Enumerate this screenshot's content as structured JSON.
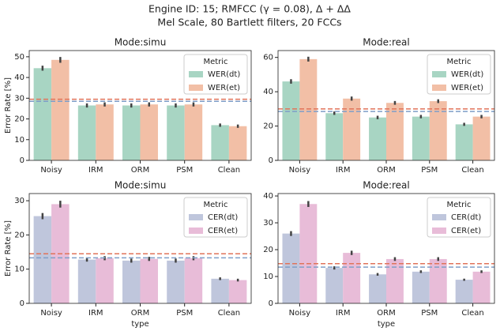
{
  "suptitle": [
    "Engine ID: 15; RMFCC (γ = 0.08), Δ + ΔΔ",
    "Mel Scale, 80 Bartlett filters, 20 FCCs"
  ],
  "chart_data": [
    {
      "type": "bar",
      "title": "Mode:simu",
      "ylabel": "Error Rate [%]",
      "legend_title": "Metric",
      "legend": "upper right",
      "categories": [
        "Noisy",
        "IRM",
        "ORM",
        "PSM",
        "Clean"
      ],
      "series": [
        {
          "name": "WER(dt)",
          "color": "#a8d5c3",
          "values": [
            44.5,
            26.5,
            26.5,
            26.5,
            17
          ],
          "errors": [
            1.2,
            1,
            1,
            1,
            0.8
          ]
        },
        {
          "name": "WER(et)",
          "color": "#f2bfa6",
          "values": [
            48.5,
            27,
            27,
            27,
            16.5
          ],
          "errors": [
            1.4,
            1,
            1,
            1,
            0.8
          ]
        }
      ],
      "reference_lines": [
        {
          "value": 29.5,
          "color": "#e0735a"
        },
        {
          "value": 28.5,
          "color": "#7f9fc8"
        }
      ],
      "ylim": [
        0,
        53
      ],
      "yticks": [
        0,
        10,
        20,
        30,
        40,
        50
      ]
    },
    {
      "type": "bar",
      "title": "Mode:real",
      "legend_title": "Metric",
      "legend": "upper right",
      "categories": [
        "Noisy",
        "IRM",
        "ORM",
        "PSM",
        "Clean"
      ],
      "series": [
        {
          "name": "WER(dt)",
          "color": "#a8d5c3",
          "values": [
            46,
            27.5,
            25,
            25.5,
            21
          ],
          "errors": [
            1.3,
            1,
            1,
            1,
            0.9
          ]
        },
        {
          "name": "WER(et)",
          "color": "#f2bfa6",
          "values": [
            59,
            36,
            33.5,
            34.5,
            25.5
          ],
          "errors": [
            1.4,
            1.2,
            1.1,
            1.1,
            1
          ]
        }
      ],
      "reference_lines": [
        {
          "value": 30,
          "color": "#e0735a"
        },
        {
          "value": 28.5,
          "color": "#7f9fc8"
        }
      ],
      "ylim": [
        0,
        64
      ],
      "yticks": [
        0,
        20,
        40,
        60
      ]
    },
    {
      "type": "bar",
      "title": "Mode:simu",
      "ylabel": "Error Rate [%]",
      "xlabel": "type",
      "legend_title": "Metric",
      "legend": "upper right",
      "categories": [
        "Noisy",
        "IRM",
        "ORM",
        "PSM",
        "Clean"
      ],
      "series": [
        {
          "name": "CER(dt)",
          "color": "#bfc6dc",
          "values": [
            25.5,
            12.8,
            12.5,
            12.5,
            7.2
          ],
          "errors": [
            0.9,
            0.6,
            0.6,
            0.6,
            0.4
          ]
        },
        {
          "name": "CER(et)",
          "color": "#e8bcd8",
          "values": [
            29,
            13.2,
            13,
            13.2,
            6.8
          ],
          "errors": [
            1,
            0.6,
            0.6,
            0.6,
            0.4
          ]
        }
      ],
      "reference_lines": [
        {
          "value": 14.5,
          "color": "#e0735a"
        },
        {
          "value": 13.3,
          "color": "#7f9fc8"
        }
      ],
      "ylim": [
        0,
        32.1
      ],
      "yticks": [
        0,
        10,
        20,
        30
      ]
    },
    {
      "type": "bar",
      "title": "Mode:real",
      "xlabel": "type",
      "legend_title": "Metric",
      "legend": "upper right",
      "categories": [
        "Noisy",
        "IRM",
        "ORM",
        "PSM",
        "Clean"
      ],
      "series": [
        {
          "name": "CER(dt)",
          "color": "#bfc6dc",
          "values": [
            26,
            13.2,
            10.8,
            11.8,
            8.8
          ],
          "errors": [
            0.9,
            0.6,
            0.5,
            0.5,
            0.4
          ]
        },
        {
          "name": "CER(et)",
          "color": "#e8bcd8",
          "values": [
            37,
            18.8,
            16.5,
            16.5,
            11.8
          ],
          "errors": [
            1.1,
            0.8,
            0.7,
            0.7,
            0.5
          ]
        }
      ],
      "reference_lines": [
        {
          "value": 14.8,
          "color": "#e0735a"
        },
        {
          "value": 13.5,
          "color": "#7f9fc8"
        }
      ],
      "ylim": [
        0,
        40.9
      ],
      "yticks": [
        0,
        10,
        20,
        30,
        40
      ]
    }
  ]
}
